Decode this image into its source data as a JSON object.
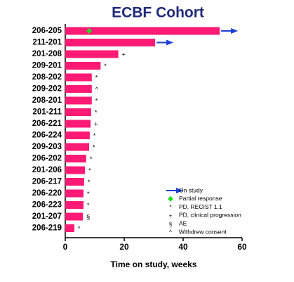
{
  "chart_data": {
    "type": "bar",
    "orientation": "horizontal",
    "title": "ECBF Cohort",
    "xlabel": "Time on study, weeks",
    "categories": [
      "206-205",
      "211-201",
      "201-208",
      "209-201",
      "208-202",
      "209-202",
      "208-201",
      "201-211",
      "206-221",
      "206-224",
      "209-203",
      "206-202",
      "201-206",
      "206-217",
      "206-220",
      "206-223",
      "201-207",
      "206-219"
    ],
    "values": [
      52.4,
      30.5,
      18,
      12,
      9,
      9,
      9,
      8.8,
      8.6,
      8.3,
      8.1,
      7.1,
      6.7,
      6.4,
      6.2,
      6.2,
      6,
      3.1
    ],
    "color": "#ff1a75",
    "outcomes": [
      "On study",
      "On study",
      "PD, clinical progression",
      "PD, RECIST 1.1",
      "PD, RECIST 1.1",
      "Withdrew consent",
      "PD, RECIST 1.1",
      "PD, RECIST 1.1",
      "PD, clinical progression",
      "PD, RECIST 1.1",
      "PD, RECIST 1.1",
      "PD, RECIST 1.1",
      "PD, RECIST 1.1",
      "PD, RECIST 1.1",
      "PD, RECIST 1.1",
      "PD, RECIST 1.1",
      "AE",
      "PD, RECIST 1.1"
    ],
    "response_x": [
      8.1,
      null,
      null,
      null,
      null,
      null,
      null,
      null,
      null,
      null,
      null,
      null,
      null,
      null,
      null,
      null,
      null,
      null
    ],
    "legend": [
      {
        "label": "On study",
        "marker": "arrow",
        "color": "#1f3fd6"
      },
      {
        "label": "Partial response",
        "marker": "diamond",
        "color": "#22dd22"
      },
      {
        "label": "PD, RECIST 1.1",
        "symbol": "*"
      },
      {
        "label": "PD, clinical progression",
        "symbol": "+"
      },
      {
        "label": "AE",
        "symbol": "§"
      },
      {
        "label": "Withdrew consent",
        "symbol": "^"
      }
    ],
    "xlim": [
      0,
      60
    ],
    "xticks": [
      0,
      20,
      40,
      60
    ]
  }
}
